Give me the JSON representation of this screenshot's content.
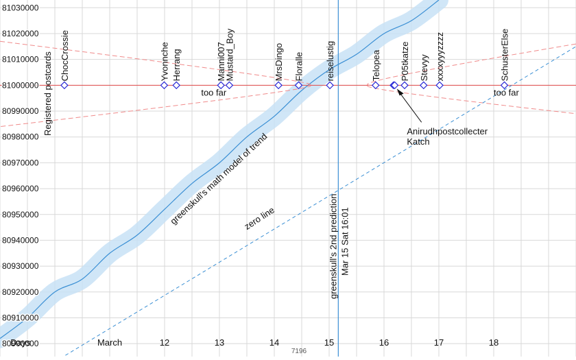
{
  "chart_data": {
    "type": "scatter",
    "title": "",
    "ylabel": "Registered postcards",
    "xlim": [
      "2025-03-09T00:00",
      "2025-03-19T12:00"
    ],
    "ylim": [
      80895000,
      81033000
    ],
    "yticks": [
      80900000,
      80910000,
      80920000,
      80930000,
      80940000,
      80950000,
      80960000,
      80970000,
      80980000,
      80990000,
      81000000,
      81010000,
      81020000,
      81030000
    ],
    "xticks": [
      {
        "label": "Days",
        "x": "2025-03-09T09:00"
      },
      {
        "label": "March",
        "x": "2025-03-11T00:00"
      },
      {
        "label": "12",
        "x": "2025-03-12T00:00"
      },
      {
        "label": "13",
        "x": "2025-03-13T00:00"
      },
      {
        "label": "14",
        "x": "2025-03-14T00:00"
      },
      {
        "label": "15",
        "x": "2025-03-15T00:00"
      },
      {
        "label": "16",
        "x": "2025-03-16T00:00"
      },
      {
        "label": "17",
        "x": "2025-03-17T00:00"
      },
      {
        "label": "18",
        "x": "2025-03-18T00:00"
      }
    ],
    "bottom_note": "7196",
    "grid": true,
    "target_value": 81000000,
    "guesses": [
      {
        "name": "ChocCrossie",
        "x": "2025-03-10T04:10"
      },
      {
        "name": "Yvonnche",
        "x": "2025-03-11T23:50"
      },
      {
        "name": "Herrang",
        "x": "2025-03-12T05:10"
      },
      {
        "name": "Manni007",
        "x": "2025-03-13T00:40"
      },
      {
        "name": "Mustard_Boy",
        "x": "2025-03-13T04:20"
      },
      {
        "name": "MrsDingo",
        "x": "2025-03-14T01:50"
      },
      {
        "name": "Floralle",
        "x": "2025-03-14T10:40"
      },
      {
        "name": "reiselustig",
        "x": "2025-03-15T00:20"
      },
      {
        "name": "Telopea",
        "x": "2025-03-15T20:20"
      },
      {
        "name": "Anirudhpostcollecter",
        "x": "2025-03-16T04:10"
      },
      {
        "name": "Katch",
        "x": "2025-03-16T04:40"
      },
      {
        "name": "P05tkatze",
        "x": "2025-03-16T09:00"
      },
      {
        "name": "Stevyy",
        "x": "2025-03-16T17:20"
      },
      {
        "name": "xxxxyyyzzzz",
        "x": "2025-03-17T00:20"
      },
      {
        "name": "SchusterElse",
        "x": "2025-03-18T04:40"
      }
    ],
    "trend_model": {
      "label": "greenskull's math model of trend",
      "points": [
        [
          "2025-03-09T00:00",
          80902000
        ],
        [
          "2025-03-09T12:00",
          80910000
        ],
        [
          "2025-03-10T00:00",
          80920000
        ],
        [
          "2025-03-10T12:00",
          80925000
        ],
        [
          "2025-03-11T00:00",
          80935000
        ],
        [
          "2025-03-11T12:00",
          80942000
        ],
        [
          "2025-03-12T00:00",
          80952000
        ],
        [
          "2025-03-12T12:00",
          80962000
        ],
        [
          "2025-03-13T00:00",
          80970000
        ],
        [
          "2025-03-13T12:00",
          80980000
        ],
        [
          "2025-03-14T00:00",
          80988000
        ],
        [
          "2025-03-14T12:00",
          80998000
        ],
        [
          "2025-03-15T00:00",
          81006000
        ],
        [
          "2025-03-15T12:00",
          81012000
        ],
        [
          "2025-03-16T00:00",
          81020000
        ],
        [
          "2025-03-16T12:00",
          81025000
        ],
        [
          "2025-03-17T00:00",
          81033000
        ]
      ]
    },
    "zero_line": {
      "label": "zero line",
      "points": [
        [
          "2025-03-10T00:00",
          80893000
        ],
        [
          "2025-03-19T12:00",
          81015000
        ]
      ]
    },
    "prediction": {
      "label_line1": "greenskull's 2nd prediction",
      "label_line2": "Mar 15 Sat 16:01",
      "x": "2025-03-15T04:00"
    },
    "annotations": [
      {
        "text": "too far",
        "x": "2025-03-12T16:00",
        "y": 80996000
      },
      {
        "text": "too far",
        "x": "2025-03-18T00:00",
        "y": 80996000
      },
      {
        "text": "Anirudhpostcollecter",
        "x": "2025-03-16T10:00",
        "y": 80981000
      },
      {
        "text": "Katch",
        "x": "2025-03-16T10:00",
        "y": 80977000
      }
    ]
  },
  "colors": {
    "grid": "#d8d8d8",
    "trend": "#3a8fd4",
    "trend_band": "#c8e2f6",
    "target": "#e24a4a",
    "hyperbola": "#f08a8a",
    "zero": "#3a8fd4",
    "prediction": "#3a8fd4",
    "marker_stroke": "#2a2ad6",
    "marker_fill": "#ffffff"
  }
}
